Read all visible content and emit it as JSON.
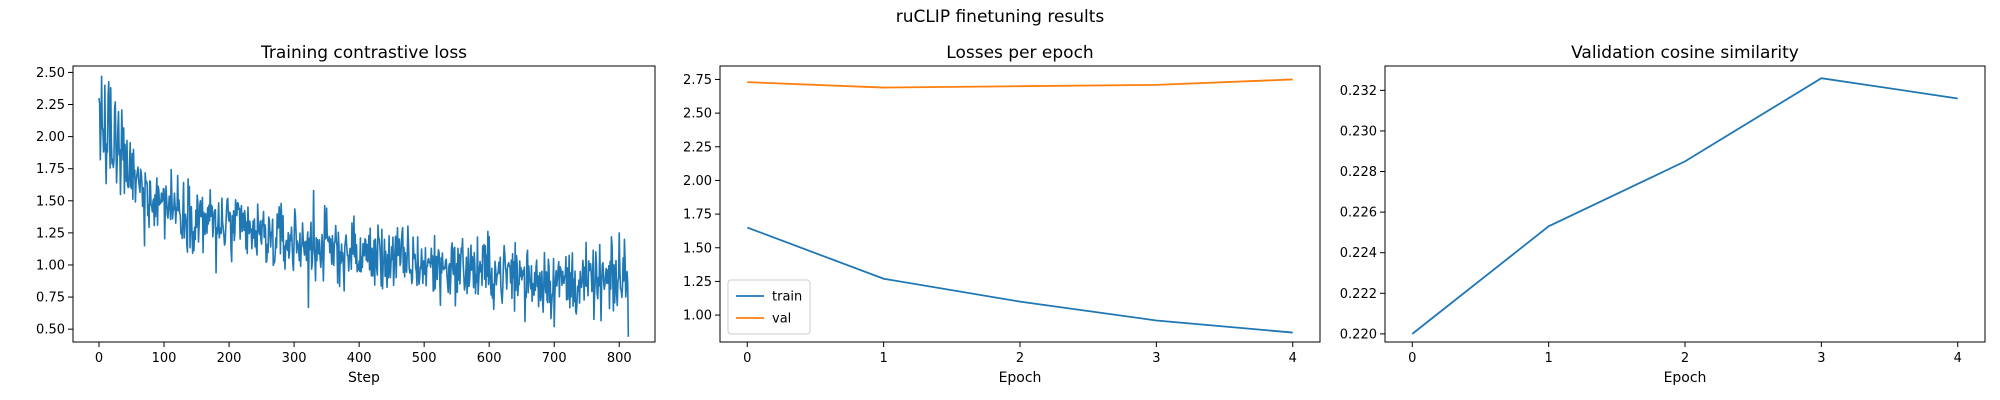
{
  "figure": {
    "suptitle": "ruCLIP finetuning results"
  },
  "colors": {
    "train": "#1f77b4",
    "val": "#ff7f0e"
  },
  "chart_data": [
    {
      "type": "line",
      "title": "Training contrastive loss",
      "xlabel": "Step",
      "ylabel": "",
      "xlim": [
        -40,
        855
      ],
      "ylim": [
        0.4,
        2.55
      ],
      "xticks": [
        0,
        100,
        200,
        300,
        400,
        500,
        600,
        700,
        800
      ],
      "yticks": [
        0.5,
        0.75,
        1.0,
        1.25,
        1.5,
        1.75,
        2.0,
        2.25,
        2.5
      ],
      "ytick_decimals": 2,
      "n_points": 815,
      "trend_anchors": [
        [
          0,
          2.05
        ],
        [
          30,
          1.85
        ],
        [
          60,
          1.62
        ],
        [
          100,
          1.5
        ],
        [
          150,
          1.38
        ],
        [
          200,
          1.3
        ],
        [
          250,
          1.22
        ],
        [
          300,
          1.18
        ],
        [
          350,
          1.13
        ],
        [
          400,
          1.08
        ],
        [
          450,
          1.05
        ],
        [
          500,
          1.0
        ],
        [
          550,
          0.98
        ],
        [
          600,
          0.95
        ],
        [
          650,
          0.92
        ],
        [
          700,
          0.88
        ],
        [
          750,
          0.86
        ],
        [
          800,
          0.86
        ],
        [
          814,
          0.85
        ]
      ],
      "noise_amplitude": 0.13,
      "marked_points": [
        [
          0,
          2.3
        ],
        [
          2,
          1.82
        ],
        [
          4,
          2.47
        ],
        [
          6,
          2.05
        ],
        [
          9,
          2.4
        ],
        [
          13,
          1.88
        ],
        [
          18,
          2.38
        ],
        [
          25,
          2.27
        ],
        [
          70,
          1.15
        ],
        [
          180,
          0.94
        ],
        [
          322,
          0.67
        ],
        [
          330,
          1.58
        ],
        [
          655,
          0.56
        ],
        [
          700,
          0.52
        ],
        [
          800,
          1.25
        ],
        [
          808,
          1.2
        ],
        [
          812,
          0.95
        ],
        [
          814,
          0.44
        ]
      ],
      "series": [
        {
          "name": "",
          "color": "#1f77b4"
        }
      ]
    },
    {
      "type": "line",
      "title": "Losses per epoch",
      "xlabel": "Epoch",
      "ylabel": "",
      "xlim": [
        -0.2,
        4.2
      ],
      "ylim": [
        0.8,
        2.85
      ],
      "xticks": [
        0,
        1,
        2,
        3,
        4
      ],
      "yticks": [
        1.0,
        1.25,
        1.5,
        1.75,
        2.0,
        2.25,
        2.5,
        2.75
      ],
      "ytick_decimals": 2,
      "x": [
        0,
        1,
        2,
        3,
        4
      ],
      "series": [
        {
          "name": "train",
          "color": "#1f77b4",
          "values": [
            1.65,
            1.27,
            1.1,
            0.96,
            0.87
          ]
        },
        {
          "name": "val",
          "color": "#ff7f0e",
          "values": [
            2.73,
            2.69,
            2.7,
            2.71,
            2.75
          ]
        }
      ],
      "legend": {
        "placement": "lower-left",
        "entries": [
          "train",
          "val"
        ]
      }
    },
    {
      "type": "line",
      "title": "Validation cosine similarity",
      "xlabel": "Epoch",
      "ylabel": "",
      "xlim": [
        -0.2,
        4.2
      ],
      "ylim": [
        0.2196,
        0.2332
      ],
      "xticks": [
        0,
        1,
        2,
        3,
        4
      ],
      "yticks": [
        0.22,
        0.222,
        0.224,
        0.226,
        0.228,
        0.23,
        0.232
      ],
      "ytick_decimals": 3,
      "x": [
        0,
        1,
        2,
        3,
        4
      ],
      "series": [
        {
          "name": "",
          "color": "#1f77b4",
          "values": [
            0.22,
            0.2253,
            0.2285,
            0.2326,
            0.2316
          ]
        }
      ]
    }
  ]
}
